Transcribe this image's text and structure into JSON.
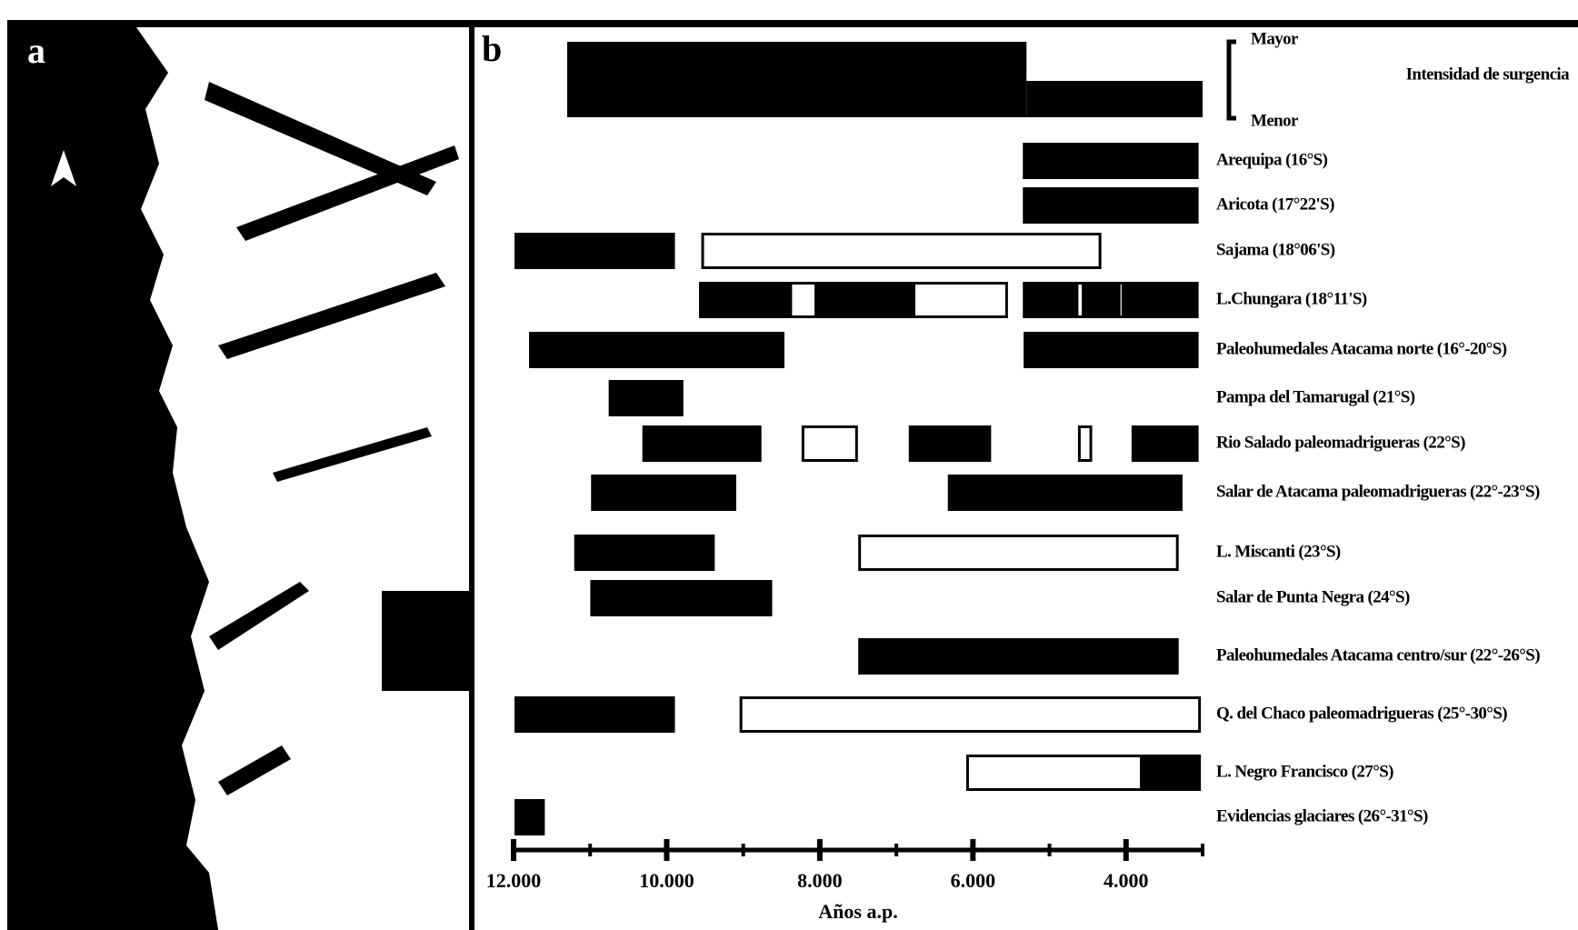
{
  "panel_labels": [
    "a",
    "b"
  ],
  "chart_data": {
    "type": "range",
    "x_label": "Años a.p.",
    "xlim": [
      12000,
      3000
    ],
    "xticks": [
      {
        "value": 12000,
        "label": "12.000"
      },
      {
        "value": 10000,
        "label": "10.000"
      },
      {
        "value": 8000,
        "label": "8.000"
      },
      {
        "value": 6000,
        "label": "6.000"
      },
      {
        "value": 4000,
        "label": "4.000"
      }
    ],
    "minor_xticks": [
      11000,
      9000,
      7000,
      5000,
      3000
    ],
    "upwelling": {
      "title": "Intensidad de surgencia",
      "scale_labels": [
        "Mayor",
        "Menor"
      ],
      "segments": [
        {
          "start": 11300,
          "end": 5300,
          "level": "Mayor"
        },
        {
          "start": 5300,
          "end": 3000,
          "level": "Menor"
        }
      ]
    },
    "rows": [
      {
        "name": "Arequipa (16°S)",
        "segments": [
          {
            "start": 5330,
            "end": 3070,
            "color": "#000000"
          }
        ]
      },
      {
        "name": "Aricota (17°22'S)",
        "segments": [
          {
            "start": 5330,
            "end": 3070,
            "color": "#000000"
          }
        ]
      },
      {
        "name": "Sajama (18°06'S)",
        "segments": [
          {
            "start": 11970,
            "end": 9910,
            "color": "#000000"
          },
          {
            "start": 9530,
            "end": 4340,
            "color": "#ffffff"
          }
        ]
      },
      {
        "name": "L.Chungara (18°11'S)",
        "segments": [
          {
            "start": 9560,
            "end": 8380,
            "color": "#000000"
          },
          {
            "start": 8380,
            "end": 8050,
            "color": "#ffffff"
          },
          {
            "start": 8050,
            "end": 6770,
            "color": "#000000"
          },
          {
            "start": 6770,
            "end": 5560,
            "color": "#ffffff"
          },
          {
            "start": 5330,
            "end": 4640,
            "color": "#000000"
          },
          {
            "start": 4640,
            "end": 4560,
            "color": "#ffffff"
          },
          {
            "start": 4560,
            "end": 4090,
            "color": "#000000"
          },
          {
            "start": 4090,
            "end": 4040,
            "color": "#ffffff"
          },
          {
            "start": 4040,
            "end": 3070,
            "color": "#000000"
          }
        ]
      },
      {
        "name": "Paleohumedales Atacama norte (16°-20°S)",
        "segments": [
          {
            "start": 11780,
            "end": 8480,
            "color": "#000000"
          },
          {
            "start": 5320,
            "end": 3070,
            "color": "#000000"
          }
        ]
      },
      {
        "name": "Pampa del Tamarugal (21°S)",
        "segments": [
          {
            "start": 10740,
            "end": 9800,
            "color": "#000000"
          }
        ]
      },
      {
        "name": "Rio Salado paleomadrigueras (22°S)",
        "segments": [
          {
            "start": 10300,
            "end": 8780,
            "color": "#000000"
          },
          {
            "start": 8220,
            "end": 7520,
            "color": "#ffffff"
          },
          {
            "start": 6820,
            "end": 5780,
            "color": "#000000"
          },
          {
            "start": 4610,
            "end": 4460,
            "color": "#ffffff"
          },
          {
            "start": 3910,
            "end": 3070,
            "color": "#000000"
          }
        ]
      },
      {
        "name": "Salar de Atacama paleomadrigueras (22°-23°S)",
        "segments": [
          {
            "start": 10970,
            "end": 9110,
            "color": "#000000"
          },
          {
            "start": 6310,
            "end": 3280,
            "color": "#000000"
          }
        ]
      },
      {
        "name": "L. Miscanti (23°S)",
        "segments": [
          {
            "start": 11190,
            "end": 9390,
            "color": "#000000"
          },
          {
            "start": 7480,
            "end": 3330,
            "color": "#ffffff"
          }
        ]
      },
      {
        "name": "Salar de Punta Negra (24°S)",
        "segments": [
          {
            "start": 10980,
            "end": 8640,
            "color": "#000000"
          }
        ]
      },
      {
        "name": "Paleohumedales Atacama centro/sur (22°-26°S)",
        "segments": [
          {
            "start": 7480,
            "end": 3330,
            "color": "#000000"
          }
        ]
      },
      {
        "name": "Q. del Chaco paleomadrigueras (25°-30°S)",
        "segments": [
          {
            "start": 11970,
            "end": 9910,
            "color": "#000000"
          },
          {
            "start": 9030,
            "end": 3040,
            "color": "#ffffff"
          }
        ]
      },
      {
        "name": "L. Negro Francisco (27°S)",
        "segments": [
          {
            "start": 6070,
            "end": 3800,
            "color": "#ffffff"
          },
          {
            "start": 3800,
            "end": 3040,
            "color": "#000000"
          }
        ]
      },
      {
        "name": "Evidencias glaciares (26°-31°S)",
        "segments": [
          {
            "start": 11970,
            "end": 11610,
            "color": "#000000"
          }
        ]
      }
    ]
  }
}
